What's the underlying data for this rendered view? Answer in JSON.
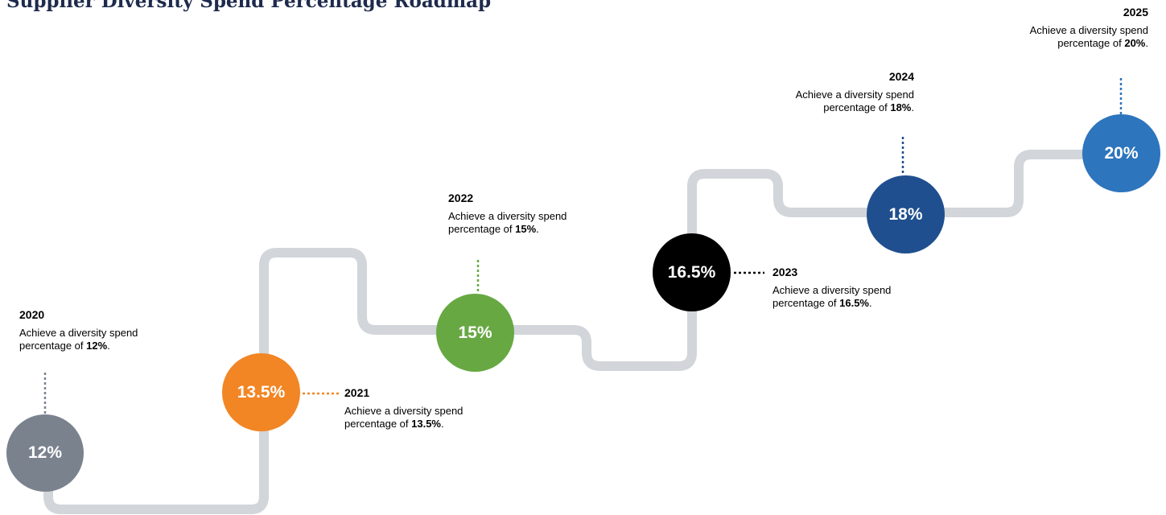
{
  "title": "Supplier Diversity Spend Percentage Roadmap",
  "colors": {
    "path": "#d2d5d9",
    "2020": "#7a828e",
    "2021": "#f28524",
    "2022": "#67a843",
    "2023": "#000000",
    "2024": "#1f4f8e",
    "2025": "#2d75bd"
  },
  "milestones": [
    {
      "year": "2020",
      "value": "12%",
      "desc_prefix": "Achieve a diversity spend percentage of ",
      "desc_value": "12%",
      "desc_suffix": "."
    },
    {
      "year": "2021",
      "value": "13.5%",
      "desc_prefix": "Achieve a diversity spend percentage of ",
      "desc_value": "13.5%",
      "desc_suffix": "."
    },
    {
      "year": "2022",
      "value": "15%",
      "desc_prefix": "Achieve a diversity spend percentage of ",
      "desc_value": "15%",
      "desc_suffix": "."
    },
    {
      "year": "2023",
      "value": "16.5%",
      "desc_prefix": "Achieve a diversity spend percentage of ",
      "desc_value": "16.5%",
      "desc_suffix": "."
    },
    {
      "year": "2024",
      "value": "18%",
      "desc_prefix": "Achieve a diversity spend percentage of ",
      "desc_value": "18%",
      "desc_suffix": "."
    },
    {
      "year": "2025",
      "value": "20%",
      "desc_prefix": "Achieve a diversity spend percentage of ",
      "desc_value": "20%",
      "desc_suffix": "."
    }
  ]
}
